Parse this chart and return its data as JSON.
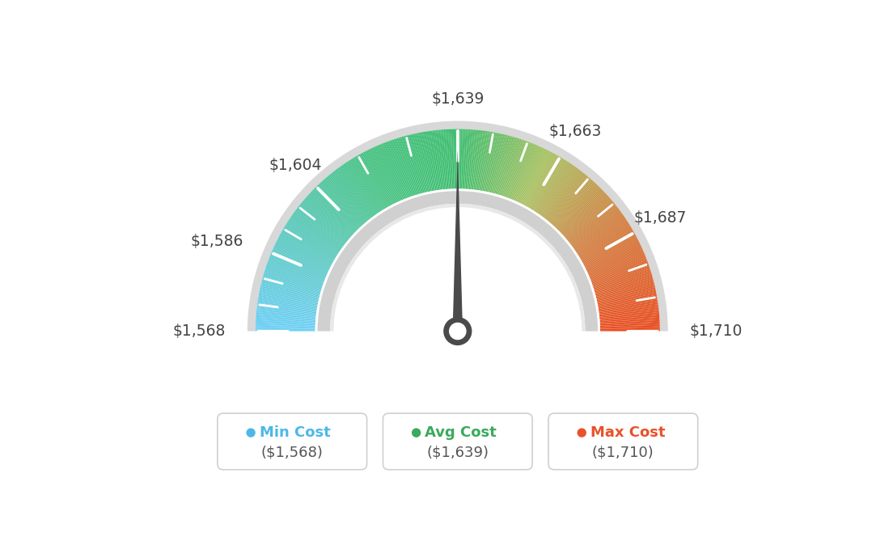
{
  "min_val": 1568,
  "max_val": 1710,
  "avg_val": 1639,
  "tick_labels": [
    "$1,568",
    "$1,586",
    "$1,604",
    "$1,639",
    "$1,663",
    "$1,687",
    "$1,710"
  ],
  "tick_values": [
    1568,
    1586,
    1604,
    1639,
    1663,
    1687,
    1710
  ],
  "legend_items": [
    {
      "label": "Min Cost",
      "value": "($1,568)",
      "color": "#4db8e8"
    },
    {
      "label": "Avg Cost",
      "value": "($1,639)",
      "color": "#3aaa5c"
    },
    {
      "label": "Max Cost",
      "value": "($1,710)",
      "color": "#e8522a"
    }
  ],
  "background_color": "#ffffff",
  "color_stops": [
    [
      0.0,
      "#6dcff6"
    ],
    [
      0.35,
      "#45c180"
    ],
    [
      0.5,
      "#3dbd6e"
    ],
    [
      0.65,
      "#a8c060"
    ],
    [
      0.8,
      "#d08040"
    ],
    [
      1.0,
      "#e84c20"
    ]
  ],
  "needle_value": 1639,
  "needle_color": "#4a4a4a"
}
